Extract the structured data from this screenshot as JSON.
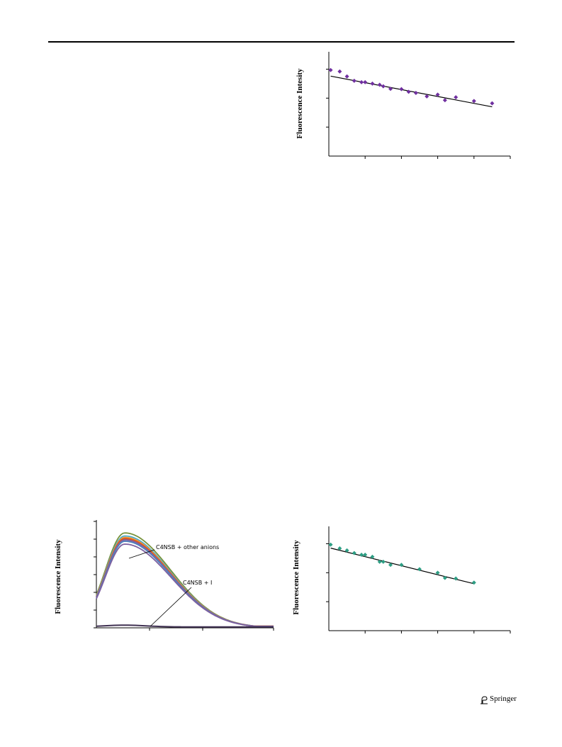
{
  "footer": {
    "publisher": "Springer"
  },
  "chart_data": [
    {
      "type": "scatter",
      "id": "top-right",
      "title": "",
      "xlabel": "",
      "ylabel": "Fluorescence Intesity",
      "xlim": [
        0,
        50
      ],
      "ylim": [
        0,
        3.6
      ],
      "marker_color": "#7030a0",
      "points": [
        [
          0.5,
          2.97
        ],
        [
          3,
          2.92
        ],
        [
          5,
          2.75
        ],
        [
          7,
          2.6
        ],
        [
          9,
          2.55
        ],
        [
          10,
          2.55
        ],
        [
          12,
          2.5
        ],
        [
          14,
          2.46
        ],
        [
          15,
          2.41
        ],
        [
          17,
          2.32
        ],
        [
          20,
          2.31
        ],
        [
          22,
          2.22
        ],
        [
          24,
          2.18
        ],
        [
          27,
          2.06
        ],
        [
          30,
          2.12
        ],
        [
          32,
          1.93
        ],
        [
          35,
          2.03
        ],
        [
          40,
          1.9
        ],
        [
          45,
          1.82
        ]
      ],
      "trendline": {
        "x": [
          0.5,
          45
        ],
        "y": [
          2.76,
          1.7
        ],
        "color": "#000000"
      }
    },
    {
      "type": "line",
      "id": "bottom-left",
      "title": "",
      "xlabel": "",
      "ylabel": "Fluorescence Intensity",
      "xlim": [
        0,
        100
      ],
      "ylim": [
        0,
        6
      ],
      "series": [
        {
          "color": "#77933c",
          "peak": 5.35,
          "tail": 0.1
        },
        {
          "color": "#4bacc6",
          "peak": 5.18,
          "tail": 0.1
        },
        {
          "color": "#f79646",
          "peak": 5.1,
          "tail": 0.1
        },
        {
          "color": "#e46c0a",
          "peak": 5.05,
          "tail": 0.09
        },
        {
          "color": "#c0504d",
          "peak": 5.0,
          "tail": 0.09
        },
        {
          "color": "#8064a2",
          "peak": 4.95,
          "tail": 0.09
        },
        {
          "color": "#4f81bd",
          "peak": 4.88,
          "tail": 0.08
        },
        {
          "color": "#7d60a0",
          "peak": 4.72,
          "tail": 0.08
        }
      ],
      "quenched": {
        "color": "#403152",
        "peak": 0.15,
        "tail": 0.05
      },
      "annotations": [
        {
          "text": "C4NSB + other anions"
        },
        {
          "text": "C4NSB + I"
        }
      ]
    },
    {
      "type": "scatter",
      "id": "bottom-right",
      "title": "",
      "xlabel": "",
      "ylabel": "Fluorescence Intensity",
      "xlim": [
        0,
        50
      ],
      "ylim": [
        0,
        3.6
      ],
      "marker_color": "#2e9e84",
      "points": [
        [
          0.5,
          2.97
        ],
        [
          3,
          2.84
        ],
        [
          5,
          2.77
        ],
        [
          7,
          2.68
        ],
        [
          9,
          2.62
        ],
        [
          10,
          2.62
        ],
        [
          12,
          2.55
        ],
        [
          14,
          2.38
        ],
        [
          15,
          2.38
        ],
        [
          17,
          2.27
        ],
        [
          20,
          2.27
        ],
        [
          25,
          2.12
        ],
        [
          30,
          2.0
        ],
        [
          32,
          1.82
        ],
        [
          35,
          1.8
        ],
        [
          40,
          1.66
        ]
      ],
      "trendline": {
        "x": [
          0.5,
          40
        ],
        "y": [
          2.85,
          1.62
        ],
        "color": "#000000"
      }
    }
  ]
}
